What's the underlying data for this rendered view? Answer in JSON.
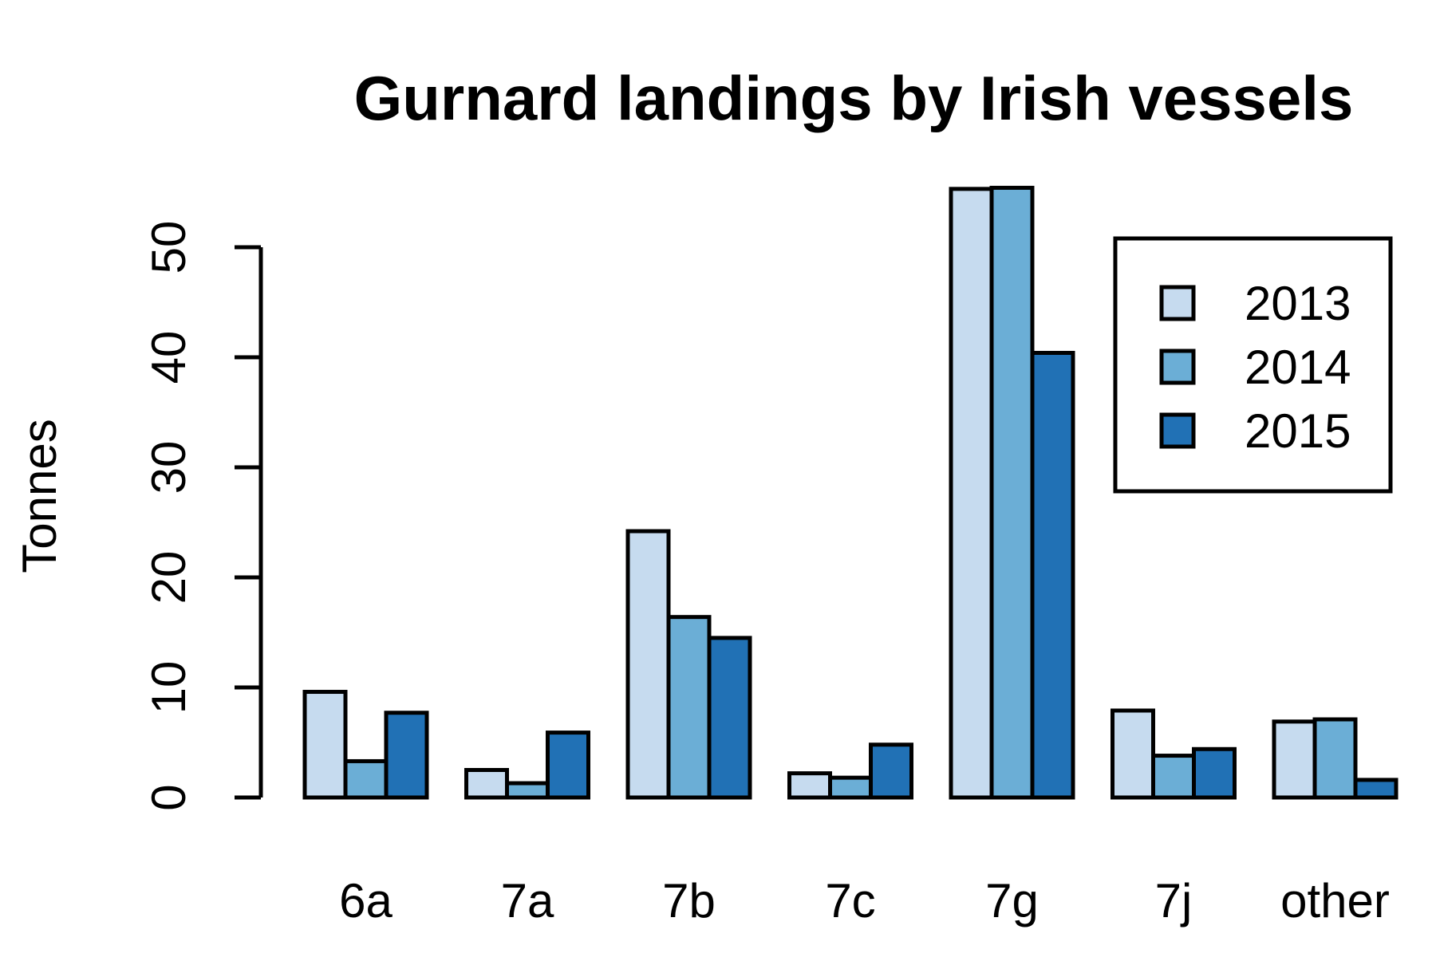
{
  "chart_data": {
    "type": "bar",
    "title": "Gurnard landings by Irish vessels",
    "xlabel": "",
    "ylabel": "Tonnes",
    "categories": [
      "6a",
      "7a",
      "7b",
      "7c",
      "7g",
      "7j",
      "other"
    ],
    "series": [
      {
        "name": "2013",
        "color": "#c6dbef",
        "values": [
          9.6,
          2.5,
          24.2,
          2.2,
          55.3,
          7.9,
          6.9
        ]
      },
      {
        "name": "2014",
        "color": "#6baed6",
        "values": [
          3.3,
          1.3,
          16.4,
          1.8,
          55.4,
          3.8,
          7.1
        ]
      },
      {
        "name": "2015",
        "color": "#2171b5",
        "values": [
          7.7,
          5.9,
          14.5,
          4.8,
          40.4,
          4.4,
          1.6
        ]
      }
    ],
    "yticks": [
      0,
      10,
      20,
      30,
      40,
      50
    ],
    "ylim": [
      0,
      55.4
    ],
    "grid": false,
    "legend_position": "top-right"
  }
}
